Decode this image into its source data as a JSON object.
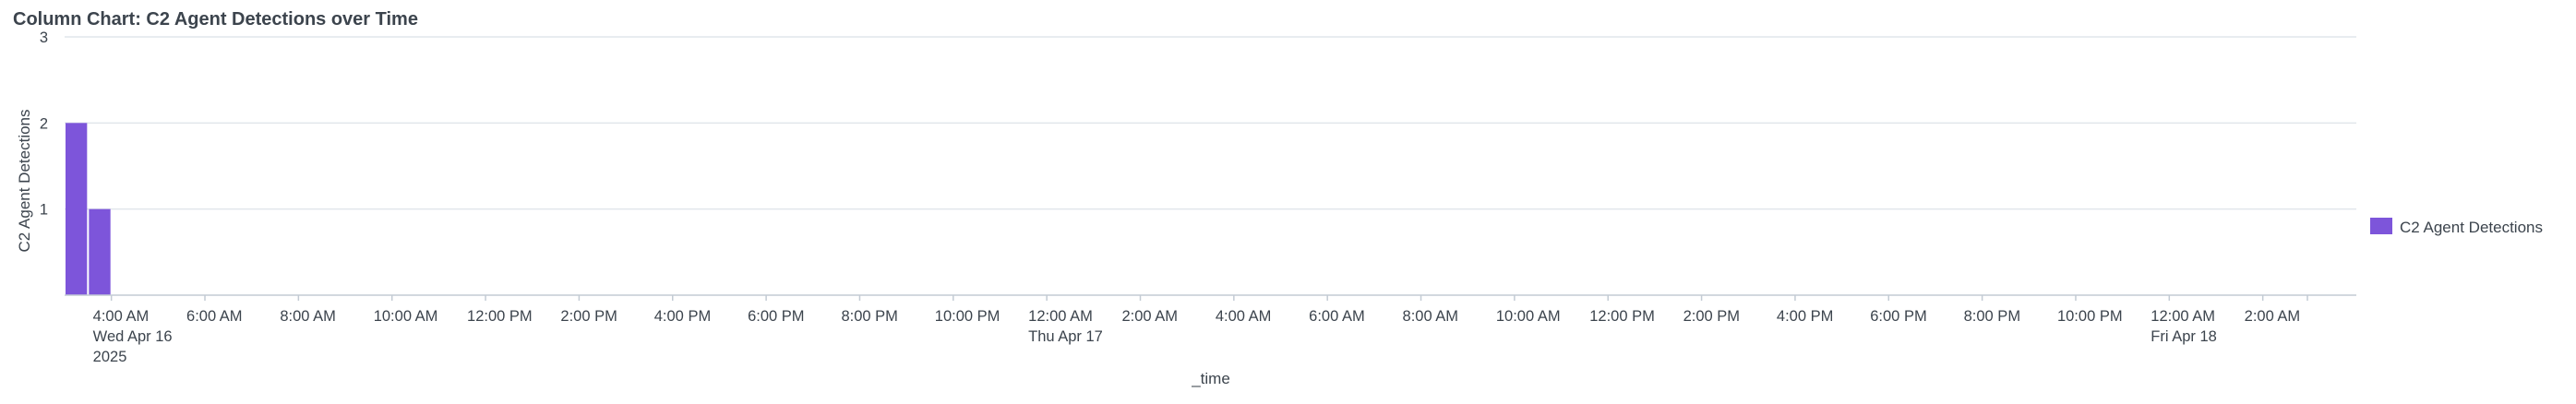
{
  "panel": {
    "title": "Column Chart: C2 Agent Detections over Time"
  },
  "chart_data": {
    "type": "bar",
    "title": "",
    "xlabel": "_time",
    "ylabel": "C2 Agent Detections",
    "ylim": [
      0,
      3
    ],
    "y_ticks": [
      1,
      2,
      3
    ],
    "grid": true,
    "legend_position": "right",
    "bar_color": "#7d55da",
    "x_domain": [
      "2025-04-16T03:00",
      "2025-04-18T04:00"
    ],
    "bar_width_hours": 0.5,
    "series": [
      {
        "name": "C2 Agent Detections",
        "x": [
          "2025-04-16T03:00",
          "2025-04-16T03:30"
        ],
        "values": [
          2,
          1
        ]
      }
    ],
    "x_tick_labels": [
      {
        "time": "2025-04-16T04:00",
        "lines": [
          "4:00 AM",
          "Wed Apr 16",
          "2025"
        ]
      },
      {
        "time": "2025-04-16T06:00",
        "lines": [
          "6:00 AM"
        ]
      },
      {
        "time": "2025-04-16T08:00",
        "lines": [
          "8:00 AM"
        ]
      },
      {
        "time": "2025-04-16T10:00",
        "lines": [
          "10:00 AM"
        ]
      },
      {
        "time": "2025-04-16T12:00",
        "lines": [
          "12:00 PM"
        ]
      },
      {
        "time": "2025-04-16T14:00",
        "lines": [
          "2:00 PM"
        ]
      },
      {
        "time": "2025-04-16T16:00",
        "lines": [
          "4:00 PM"
        ]
      },
      {
        "time": "2025-04-16T18:00",
        "lines": [
          "6:00 PM"
        ]
      },
      {
        "time": "2025-04-16T20:00",
        "lines": [
          "8:00 PM"
        ]
      },
      {
        "time": "2025-04-16T22:00",
        "lines": [
          "10:00 PM"
        ]
      },
      {
        "time": "2025-04-17T00:00",
        "lines": [
          "12:00 AM",
          "Thu Apr 17"
        ]
      },
      {
        "time": "2025-04-17T02:00",
        "lines": [
          "2:00 AM"
        ]
      },
      {
        "time": "2025-04-17T04:00",
        "lines": [
          "4:00 AM"
        ]
      },
      {
        "time": "2025-04-17T06:00",
        "lines": [
          "6:00 AM"
        ]
      },
      {
        "time": "2025-04-17T08:00",
        "lines": [
          "8:00 AM"
        ]
      },
      {
        "time": "2025-04-17T10:00",
        "lines": [
          "10:00 AM"
        ]
      },
      {
        "time": "2025-04-17T12:00",
        "lines": [
          "12:00 PM"
        ]
      },
      {
        "time": "2025-04-17T14:00",
        "lines": [
          "2:00 PM"
        ]
      },
      {
        "time": "2025-04-17T16:00",
        "lines": [
          "4:00 PM"
        ]
      },
      {
        "time": "2025-04-17T18:00",
        "lines": [
          "6:00 PM"
        ]
      },
      {
        "time": "2025-04-17T20:00",
        "lines": [
          "8:00 PM"
        ]
      },
      {
        "time": "2025-04-17T22:00",
        "lines": [
          "10:00 PM"
        ]
      },
      {
        "time": "2025-04-18T00:00",
        "lines": [
          "12:00 AM",
          "Fri Apr 18"
        ]
      },
      {
        "time": "2025-04-18T02:00",
        "lines": [
          "2:00 AM"
        ]
      }
    ]
  }
}
